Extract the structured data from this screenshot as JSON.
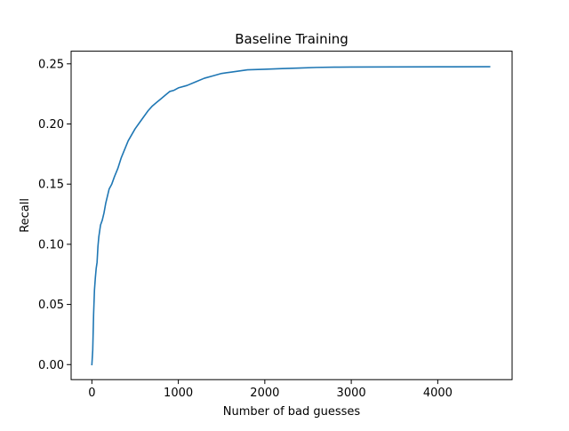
{
  "chart_data": {
    "type": "line",
    "title": "Baseline Training",
    "xlabel": "Number of bad guesses",
    "ylabel": "Recall",
    "xlim": [
      -240,
      4860
    ],
    "ylim": [
      -0.0125,
      0.2605
    ],
    "xticks": [
      {
        "value": 0,
        "label": "0"
      },
      {
        "value": 1000,
        "label": "1000"
      },
      {
        "value": 2000,
        "label": "2000"
      },
      {
        "value": 3000,
        "label": "3000"
      },
      {
        "value": 4000,
        "label": "4000"
      }
    ],
    "yticks": [
      {
        "value": 0.0,
        "label": "0.00"
      },
      {
        "value": 0.05,
        "label": "0.05"
      },
      {
        "value": 0.1,
        "label": "0.10"
      },
      {
        "value": 0.15,
        "label": "0.15"
      },
      {
        "value": 0.2,
        "label": "0.20"
      },
      {
        "value": 0.25,
        "label": "0.25"
      }
    ],
    "grid": false,
    "legend": "none",
    "series": [
      {
        "color": "#1f77b4",
        "x": [
          0,
          10,
          20,
          30,
          40,
          50,
          60,
          70,
          80,
          100,
          120,
          140,
          160,
          180,
          200,
          230,
          260,
          300,
          340,
          380,
          420,
          460,
          500,
          550,
          600,
          650,
          700,
          750,
          800,
          850,
          900,
          950,
          1000,
          1100,
          1200,
          1300,
          1400,
          1500,
          1600,
          1700,
          1800,
          2000,
          2200,
          2400,
          2600,
          2800,
          3000,
          3500,
          4000,
          4600
        ],
        "y": [
          0.0,
          0.012,
          0.042,
          0.062,
          0.072,
          0.08,
          0.085,
          0.098,
          0.106,
          0.116,
          0.12,
          0.126,
          0.134,
          0.14,
          0.146,
          0.15,
          0.156,
          0.163,
          0.172,
          0.179,
          0.186,
          0.191,
          0.196,
          0.201,
          0.206,
          0.211,
          0.215,
          0.218,
          0.221,
          0.224,
          0.227,
          0.228,
          0.23,
          0.232,
          0.235,
          0.238,
          0.24,
          0.242,
          0.243,
          0.244,
          0.245,
          0.2455,
          0.246,
          0.2465,
          0.247,
          0.2472,
          0.2473,
          0.2474,
          0.2475,
          0.2476
        ]
      }
    ]
  }
}
